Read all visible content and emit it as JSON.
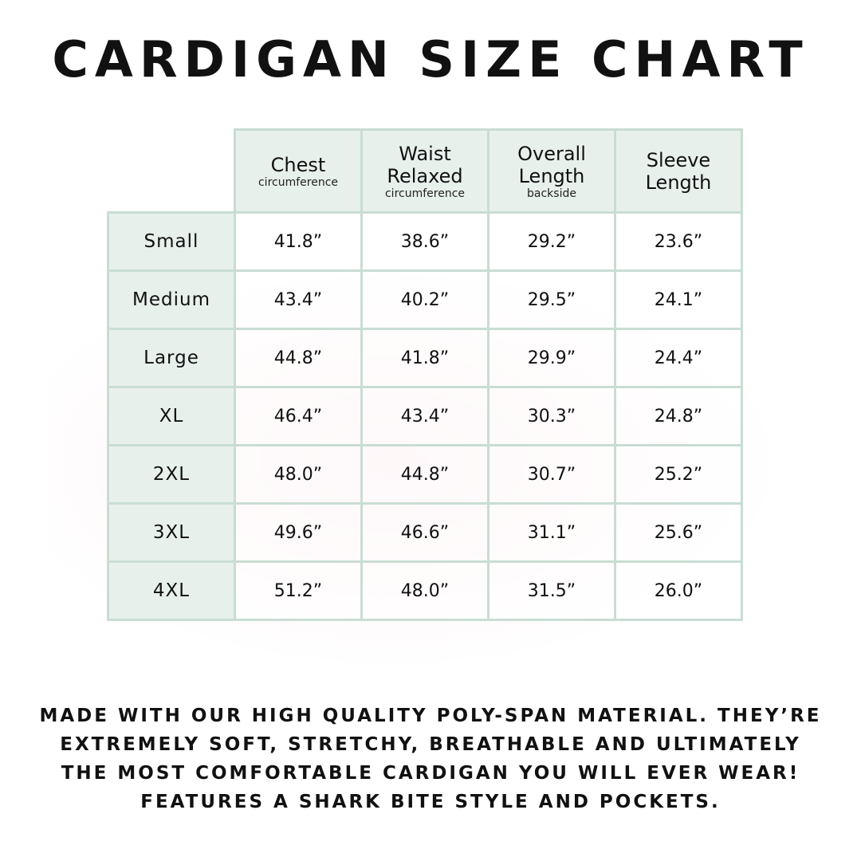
{
  "title": "CARDIGAN SIZE CHART",
  "columns": [
    {
      "label": "Chest",
      "sublabel": "circumference"
    },
    {
      "label": "Waist Relaxed",
      "sublabel": "circumference"
    },
    {
      "label": "Overall Length",
      "sublabel": "backside"
    },
    {
      "label": "Sleeve Length",
      "sublabel": ""
    }
  ],
  "rows": [
    {
      "size": "Small",
      "values": [
        "41.8”",
        "38.6”",
        "29.2”",
        "23.6”"
      ]
    },
    {
      "size": "Medium",
      "values": [
        "43.4”",
        "40.2”",
        "29.5”",
        "24.1”"
      ]
    },
    {
      "size": "Large",
      "values": [
        "44.8”",
        "41.8”",
        "29.9”",
        "24.4”"
      ]
    },
    {
      "size": "XL",
      "values": [
        "46.4”",
        "43.4”",
        "30.3”",
        "24.8”"
      ]
    },
    {
      "size": "2XL",
      "values": [
        "48.0”",
        "44.8”",
        "30.7”",
        "25.2”"
      ]
    },
    {
      "size": "3XL",
      "values": [
        "49.6”",
        "46.6”",
        "31.1”",
        "25.6”"
      ]
    },
    {
      "size": "4XL",
      "values": [
        "51.2”",
        "48.0”",
        "31.5”",
        "26.0”"
      ]
    }
  ],
  "description": [
    "Made with our high quality poly-span material. They’re",
    "extremely soft, stretchy, breathable and ultimately",
    "the most comfortable cardigan you will ever wear!",
    "Features a shark bite style and pockets."
  ],
  "colors": {
    "header_bg": "#e8f0ec",
    "border": "#c9ddd3"
  }
}
